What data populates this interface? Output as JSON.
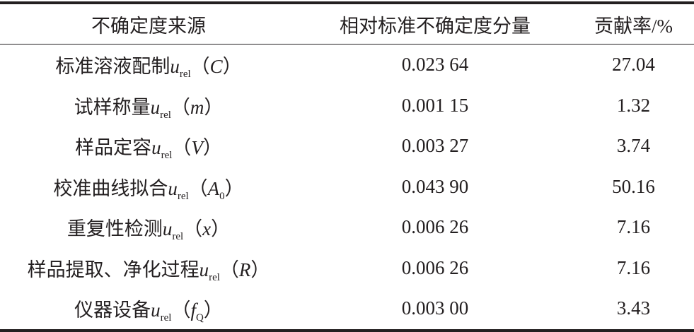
{
  "table": {
    "header": [
      "不确定度来源",
      "相对标准不确定度分量",
      "贡献率/%"
    ],
    "rows": [
      [
        {
          "name": "标准溶液配制",
          "u": "u",
          "sub": "rel",
          "open": "（",
          "arg": "C",
          "close": "）"
        },
        "0.023 64",
        "27.04"
      ],
      [
        {
          "name": "试样称量",
          "u": "u",
          "sub": "rel",
          "open": "（",
          "arg": "m",
          "close": "）"
        },
        "0.001 15",
        "1.32"
      ],
      [
        {
          "name": "样品定容",
          "u": "u",
          "sub": "rel",
          "open": "（",
          "arg": "V",
          "close": "）"
        },
        "0.003 27",
        "3.74"
      ],
      [
        {
          "name": "校准曲线拟合",
          "u": "u",
          "sub": "rel",
          "open": "（",
          "arg": "A",
          "arg_sub": "0",
          "close": "）"
        },
        "0.043 90",
        "50.16"
      ],
      [
        {
          "name": "重复性检测",
          "u": "u",
          "sub": "rel",
          "open": "（",
          "arg": "x",
          "close": "）"
        },
        "0.006 26",
        "7.16"
      ],
      [
        {
          "name": "样品提取、净化过程",
          "u": "u",
          "sub": "rel",
          "open": "（",
          "arg": "R",
          "close": "）"
        },
        "0.006 26",
        "7.16"
      ],
      [
        {
          "name": "仪器设备",
          "u": "u",
          "sub": "rel",
          "open": "（",
          "arg": "f",
          "arg_sub": "Q",
          "close": "）"
        },
        "0.003 00",
        "3.43"
      ]
    ]
  }
}
